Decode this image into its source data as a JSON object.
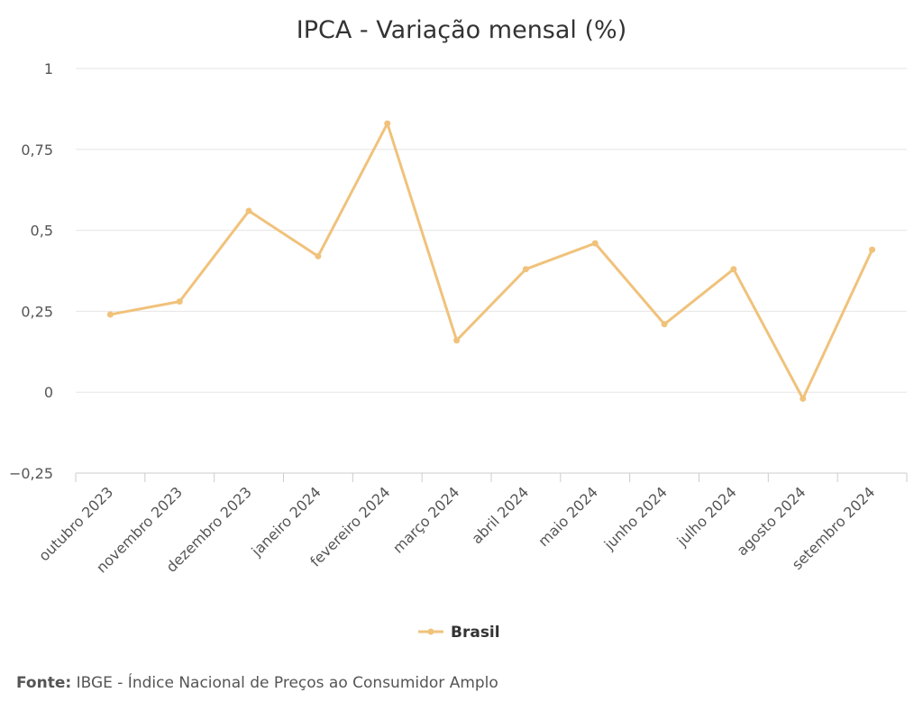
{
  "chart_data": {
    "type": "line",
    "title": "IPCA - Variação mensal (%)",
    "categories": [
      "outubro 2023",
      "novembro 2023",
      "dezembro 2023",
      "janeiro 2024",
      "fevereiro 2024",
      "março 2024",
      "abril 2024",
      "maio 2024",
      "junho 2024",
      "julho 2024",
      "agosto 2024",
      "setembro 2024"
    ],
    "series": [
      {
        "name": "Brasil",
        "color": "#f0c27b",
        "values": [
          0.24,
          0.28,
          0.56,
          0.42,
          0.83,
          0.16,
          0.38,
          0.46,
          0.21,
          0.38,
          -0.02,
          0.44
        ]
      }
    ],
    "ylim": [
      -0.25,
      1
    ],
    "yticks": [
      -0.25,
      0,
      0.25,
      0.5,
      0.75,
      1
    ],
    "ytick_labels": [
      "−0,25",
      "0",
      "0,25",
      "0,5",
      "0,75",
      "1"
    ],
    "xlabel": "",
    "ylabel": "",
    "grid": true,
    "legend": "bottom-center"
  },
  "source": {
    "label": "Fonte:",
    "text": "IBGE - Índice Nacional de Preços ao Consumidor Amplo"
  }
}
